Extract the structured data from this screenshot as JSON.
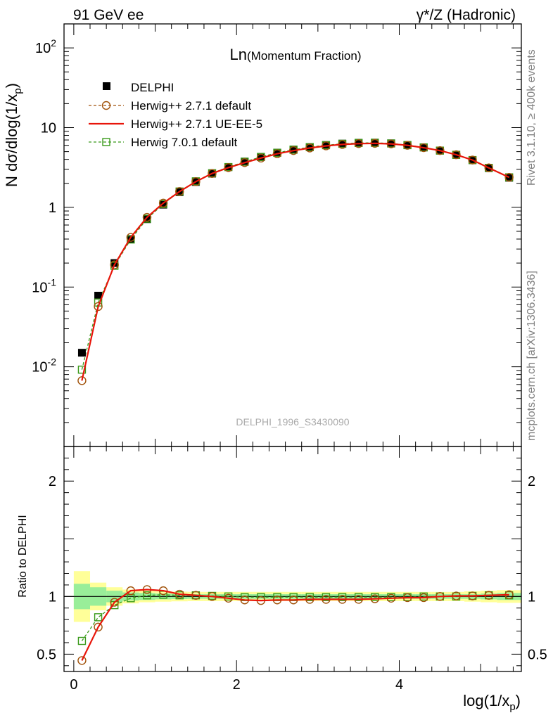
{
  "header": {
    "left": "91 GeV ee",
    "right": "γ*/Z (Hadronic)"
  },
  "side_labels": {
    "rivet": "Rivet 3.1.10, ≥ 400k events",
    "mcplots": "mcplots.cern.ch [arXiv:1306.3436]"
  },
  "chart_data": {
    "type": "scatter",
    "title_main": "Ln",
    "title_sub": "(Momentum Fraction)",
    "watermark": "DELPHI_1996_S3430090",
    "xlabel": "log(1/x_p)",
    "ylabel": "N dσ/dlog(1/x_p)",
    "ratio_ylabel": "Ratio to DELPHI",
    "xlim": [
      -0.12,
      5.5
    ],
    "ylim": [
      0.001,
      200
    ],
    "ratio_ylim": [
      0.35,
      2.3
    ],
    "main_y_ticks": [
      "10^-2",
      "10^-1",
      "1",
      "10",
      "10^2"
    ],
    "x_ticks": [
      "0",
      "2",
      "4"
    ],
    "ratio_y_ticks": [
      "0.5",
      "1",
      "2"
    ],
    "x": [
      0.1,
      0.3,
      0.5,
      0.7,
      0.9,
      1.1,
      1.3,
      1.5,
      1.7,
      1.9,
      2.1,
      2.3,
      2.5,
      2.7,
      2.9,
      3.1,
      3.3,
      3.5,
      3.7,
      3.9,
      4.1,
      4.3,
      4.5,
      4.7,
      4.9,
      5.1,
      5.35
    ],
    "x_halfwidth": 0.1,
    "x_last_halfwidth": 0.15,
    "band_inner": [
      0.11,
      0.08,
      0.05,
      0.035,
      0.03,
      0.025,
      0.022,
      0.02,
      0.02,
      0.02,
      0.02,
      0.02,
      0.02,
      0.02,
      0.02,
      0.02,
      0.02,
      0.02,
      0.02,
      0.02,
      0.02,
      0.02,
      0.02,
      0.02,
      0.02,
      0.025,
      0.03
    ],
    "band_outer": [
      0.22,
      0.12,
      0.08,
      0.06,
      0.05,
      0.045,
      0.042,
      0.04,
      0.04,
      0.04,
      0.04,
      0.04,
      0.04,
      0.04,
      0.04,
      0.04,
      0.04,
      0.04,
      0.04,
      0.04,
      0.04,
      0.04,
      0.04,
      0.04,
      0.045,
      0.05,
      0.055
    ],
    "series": [
      {
        "name": "DELPHI",
        "style": "marker-square-filled",
        "color": "#000000",
        "values": [
          0.015,
          0.078,
          0.2,
          0.4,
          0.71,
          1.08,
          1.55,
          2.08,
          2.65,
          3.2,
          3.75,
          4.3,
          4.85,
          5.3,
          5.7,
          6.05,
          6.3,
          6.45,
          6.48,
          6.35,
          6.05,
          5.65,
          5.15,
          4.55,
          3.9,
          3.1,
          2.35
        ]
      },
      {
        "name": "Herwig++ 2.7.1 default",
        "style": "dashed-circle",
        "color": "#a0520a",
        "values": [
          0.0067,
          0.057,
          0.19,
          0.42,
          0.75,
          1.13,
          1.58,
          2.1,
          2.66,
          3.15,
          3.64,
          4.15,
          4.7,
          5.15,
          5.55,
          5.9,
          6.15,
          6.3,
          6.35,
          6.25,
          6.0,
          5.6,
          5.15,
          4.57,
          3.92,
          3.13,
          2.38
        ]
      },
      {
        "name": "Herwig++ 2.7.1 UE-EE-5",
        "style": "solid-line",
        "color": "#e8150a",
        "values": [
          0.0067,
          0.057,
          0.19,
          0.42,
          0.75,
          1.13,
          1.58,
          2.1,
          2.66,
          3.15,
          3.64,
          4.15,
          4.7,
          5.15,
          5.55,
          5.9,
          6.15,
          6.3,
          6.35,
          6.25,
          6.0,
          5.6,
          5.15,
          4.57,
          3.92,
          3.13,
          2.38
        ]
      },
      {
        "name": "Herwig 7.0.1 default",
        "style": "dashed-square-open",
        "color": "#3a9a1a",
        "values": [
          0.0092,
          0.064,
          0.185,
          0.395,
          0.72,
          1.1,
          1.58,
          2.12,
          2.68,
          3.2,
          3.73,
          4.28,
          4.83,
          5.28,
          5.68,
          6.02,
          6.27,
          6.42,
          6.45,
          6.33,
          6.03,
          5.65,
          5.15,
          4.56,
          3.92,
          3.13,
          2.38
        ]
      }
    ],
    "ratio_series": [
      {
        "name": "Herwig++ 2.7.1 default",
        "values": [
          0.445,
          0.735,
          0.95,
          1.05,
          1.06,
          1.05,
          1.02,
          1.01,
          1.0,
          0.985,
          0.97,
          0.965,
          0.97,
          0.97,
          0.975,
          0.975,
          0.975,
          0.975,
          0.98,
          0.985,
          0.99,
          0.99,
          1.0,
          1.005,
          1.005,
          1.01,
          1.015
        ]
      },
      {
        "name": "Herwig++ 2.7.1 UE-EE-5",
        "values": [
          0.445,
          0.735,
          0.95,
          1.05,
          1.06,
          1.05,
          1.02,
          1.01,
          1.0,
          0.985,
          0.97,
          0.965,
          0.97,
          0.97,
          0.975,
          0.975,
          0.975,
          0.975,
          0.98,
          0.985,
          0.99,
          0.99,
          1.0,
          1.005,
          1.005,
          1.01,
          1.015
        ]
      },
      {
        "name": "Herwig 7.0.1 default",
        "values": [
          0.615,
          0.82,
          0.925,
          0.985,
          1.01,
          1.015,
          1.01,
          1.01,
          1.005,
          1.0,
          0.995,
          0.995,
          0.995,
          0.995,
          0.995,
          0.995,
          0.995,
          0.995,
          0.995,
          0.995,
          0.995,
          1.0,
          1.0,
          1.0,
          1.005,
          1.01,
          1.01
        ]
      }
    ]
  }
}
